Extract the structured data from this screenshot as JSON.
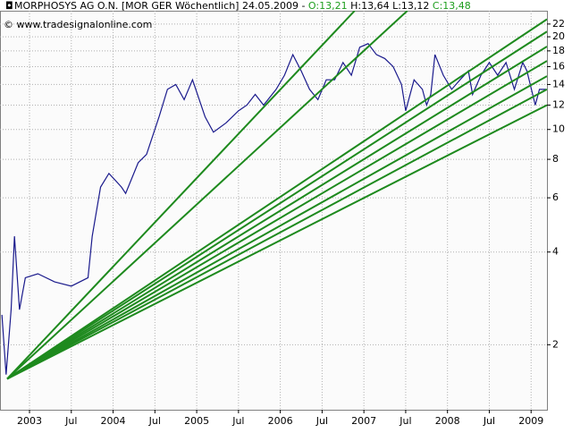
{
  "chart_data": {
    "type": "line",
    "title": "MORPHOSYS AG O.N. [MOR GER  Wöchentlich] 24.05.2009 -",
    "ohlc": [
      "O:13,21",
      "H:13,64",
      "L:13,12",
      "C:13,48"
    ],
    "watermark": "© www.tradesignalonline.com",
    "log_scale": true,
    "grid": true,
    "xlim": [
      2002.647,
      2009.19
    ],
    "ylim": [
      1.23,
      24.3
    ],
    "xticks": [
      2003,
      {
        "value": 2003.5,
        "label": "Jul"
      },
      2004,
      {
        "value": 2004.5,
        "label": "Jul"
      },
      2005,
      {
        "value": 2005.5,
        "label": "Jul"
      },
      2006,
      {
        "value": 2006.5,
        "label": "Jul"
      },
      2007,
      {
        "value": 2007.5,
        "label": "Jul"
      },
      2008,
      {
        "value": 2008.5,
        "label": "Jul"
      },
      2009
    ],
    "yticks": [
      2,
      4,
      6,
      8,
      10,
      12,
      14,
      16,
      18,
      20,
      22
    ],
    "series": [
      {
        "color": "#1a1a8c",
        "x": [
          2002.67,
          2002.72,
          2002.78,
          2002.82,
          2002.88,
          2002.95,
          2003.1,
          2003.3,
          2003.5,
          2003.7,
          2003.75,
          2003.85,
          2003.95,
          2004.1,
          2004.15,
          2004.3,
          2004.4,
          2004.55,
          2004.65,
          2004.75,
          2004.85,
          2004.95,
          2005.1,
          2005.2,
          2005.35,
          2005.5,
          2005.6,
          2005.7,
          2005.8,
          2005.95,
          2006.05,
          2006.15,
          2006.25,
          2006.35,
          2006.45,
          2006.55,
          2006.65,
          2006.75,
          2006.85,
          2006.95,
          2007.05,
          2007.15,
          2007.25,
          2007.35,
          2007.45,
          2007.5,
          2007.6,
          2007.7,
          2007.75,
          2007.8,
          2007.85,
          2007.95,
          2008.05,
          2008.15,
          2008.25,
          2008.3,
          2008.4,
          2008.5,
          2008.6,
          2008.7,
          2008.8,
          2008.9,
          2008.95,
          2009.05,
          2009.1,
          2009.18
        ],
        "values": [
          2.5,
          1.6,
          2.6,
          4.5,
          2.6,
          3.3,
          3.4,
          3.2,
          3.1,
          3.3,
          4.5,
          6.5,
          7.2,
          6.5,
          6.2,
          7.8,
          8.3,
          11,
          13.5,
          14,
          12.5,
          14.5,
          11,
          9.8,
          10.5,
          11.5,
          12,
          13,
          12,
          13.5,
          15,
          17.5,
          15.5,
          13.5,
          12.5,
          14.5,
          14.5,
          16.5,
          15,
          18.5,
          19,
          17.5,
          17,
          16,
          14,
          11.5,
          14.5,
          13.5,
          12,
          13,
          17.5,
          15,
          13.5,
          14.5,
          15.5,
          13,
          15,
          16.5,
          15,
          16.5,
          13.5,
          16.5,
          15.5,
          12,
          13.5,
          13.5
        ]
      },
      {
        "color": "#1e8a1e",
        "x": [
          2002.733,
          2006.89
        ],
        "values": [
          1.55,
          24.3
        ]
      },
      {
        "color": "#1e8a1e",
        "x": [
          2002.733,
          2007.52
        ],
        "values": [
          1.55,
          24.3
        ]
      },
      {
        "color": "#1e8a1e",
        "x": [
          2002.733,
          2009.19
        ],
        "values": [
          1.55,
          22.8
        ]
      },
      {
        "color": "#1e8a1e",
        "x": [
          2002.733,
          2009.19
        ],
        "values": [
          1.55,
          20.8
        ]
      },
      {
        "color": "#1e8a1e",
        "x": [
          2002.733,
          2009.19
        ],
        "values": [
          1.55,
          18.6
        ]
      },
      {
        "color": "#1e8a1e",
        "x": [
          2002.733,
          2009.19
        ],
        "values": [
          1.55,
          16.7
        ]
      },
      {
        "color": "#1e8a1e",
        "x": [
          2002.733,
          2009.19
        ],
        "values": [
          1.55,
          14.9
        ]
      },
      {
        "color": "#1e8a1e",
        "x": [
          2002.733,
          2009.19
        ],
        "values": [
          1.55,
          13.5
        ]
      },
      {
        "color": "#1e8a1e",
        "x": [
          2002.733,
          2009.19
        ],
        "values": [
          1.55,
          12.0
        ]
      }
    ]
  }
}
